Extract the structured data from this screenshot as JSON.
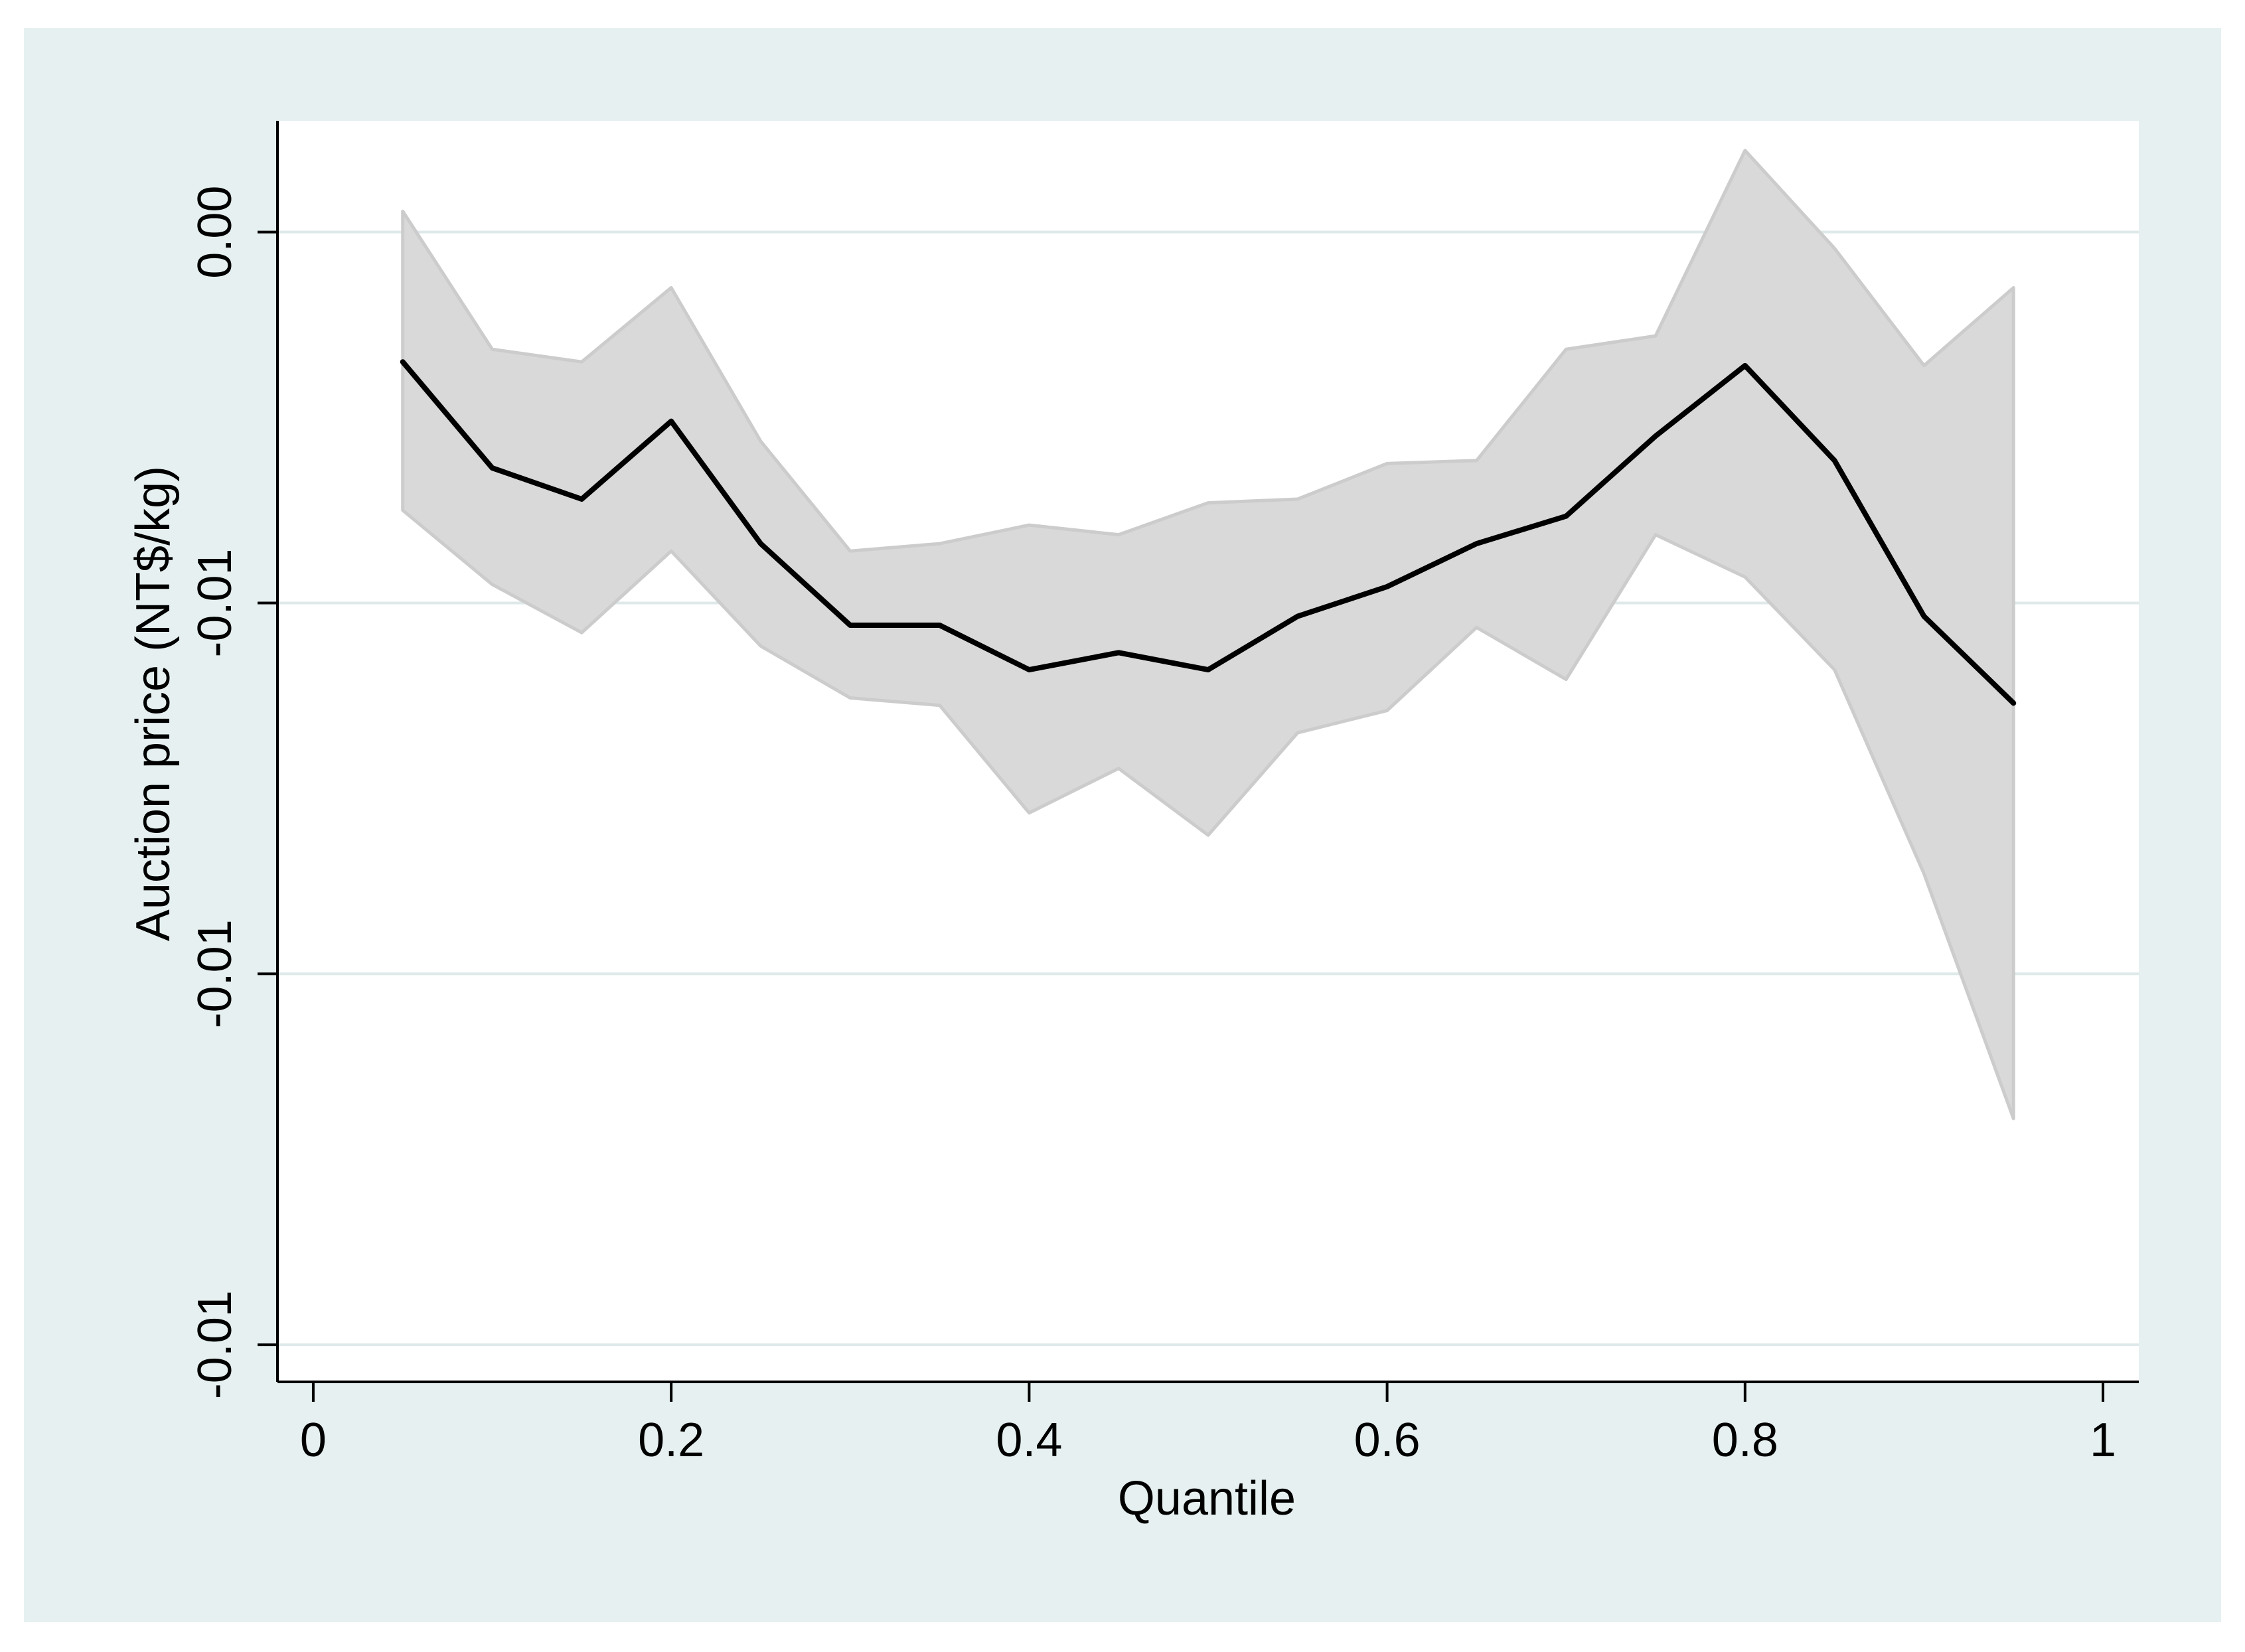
{
  "chart_data": {
    "type": "line",
    "title": "",
    "xlabel": "Quantile",
    "ylabel": "Auction price (NT$/kg)",
    "xlim": [
      -0.02,
      1.02
    ],
    "ylim": [
      -0.0155,
      0.0015
    ],
    "x_ticks": [
      0,
      0.2,
      0.4,
      0.6,
      0.8,
      1
    ],
    "x_tick_labels": [
      "0",
      "0.2",
      "0.4",
      "0.6",
      "0.8",
      "1"
    ],
    "y_ticks": [
      0.0,
      -0.005,
      -0.01,
      -0.015
    ],
    "y_tick_labels": [
      "0.00",
      "-0.01",
      "-0.01",
      "-0.01"
    ],
    "grid": true,
    "legend": "none",
    "colors": {
      "outer_background": "#e6f0f0",
      "plot_background": "#ffffff",
      "grid": "#dfe9e9",
      "line": "#000000",
      "band_fill": "#d9d9d9",
      "band_edge": "#cccccc",
      "axis": "#000000"
    },
    "x": [
      0.05,
      0.1,
      0.15,
      0.2,
      0.25,
      0.3,
      0.35,
      0.4,
      0.45,
      0.5,
      0.55,
      0.6,
      0.65,
      0.7,
      0.75,
      0.8,
      0.85,
      0.9,
      0.95
    ],
    "series": [
      {
        "values": [
          -0.00175,
          -0.00318,
          -0.0036,
          -0.00255,
          -0.0042,
          -0.0053,
          -0.0053,
          -0.0059,
          -0.00567,
          -0.0059,
          -0.00518,
          -0.00478,
          -0.0042,
          -0.00383,
          -0.00275,
          -0.0018,
          -0.00308,
          -0.00518,
          -0.00635
        ]
      }
    ],
    "band": {
      "upper": [
        0.00028,
        -0.00158,
        -0.00175,
        -0.00075,
        -0.00282,
        -0.0043,
        -0.0042,
        -0.00395,
        -0.00408,
        -0.00365,
        -0.0036,
        -0.00312,
        -0.00308,
        -0.00158,
        -0.0014,
        0.0011,
        -0.00022,
        -0.0018,
        -0.00075
      ],
      "lower": [
        -0.00375,
        -0.00475,
        -0.0054,
        -0.0043,
        -0.00558,
        -0.00628,
        -0.00638,
        -0.00783,
        -0.00723,
        -0.00813,
        -0.00675,
        -0.00645,
        -0.00533,
        -0.00603,
        -0.00408,
        -0.00465,
        -0.0059,
        -0.00865,
        -0.01195
      ]
    }
  }
}
